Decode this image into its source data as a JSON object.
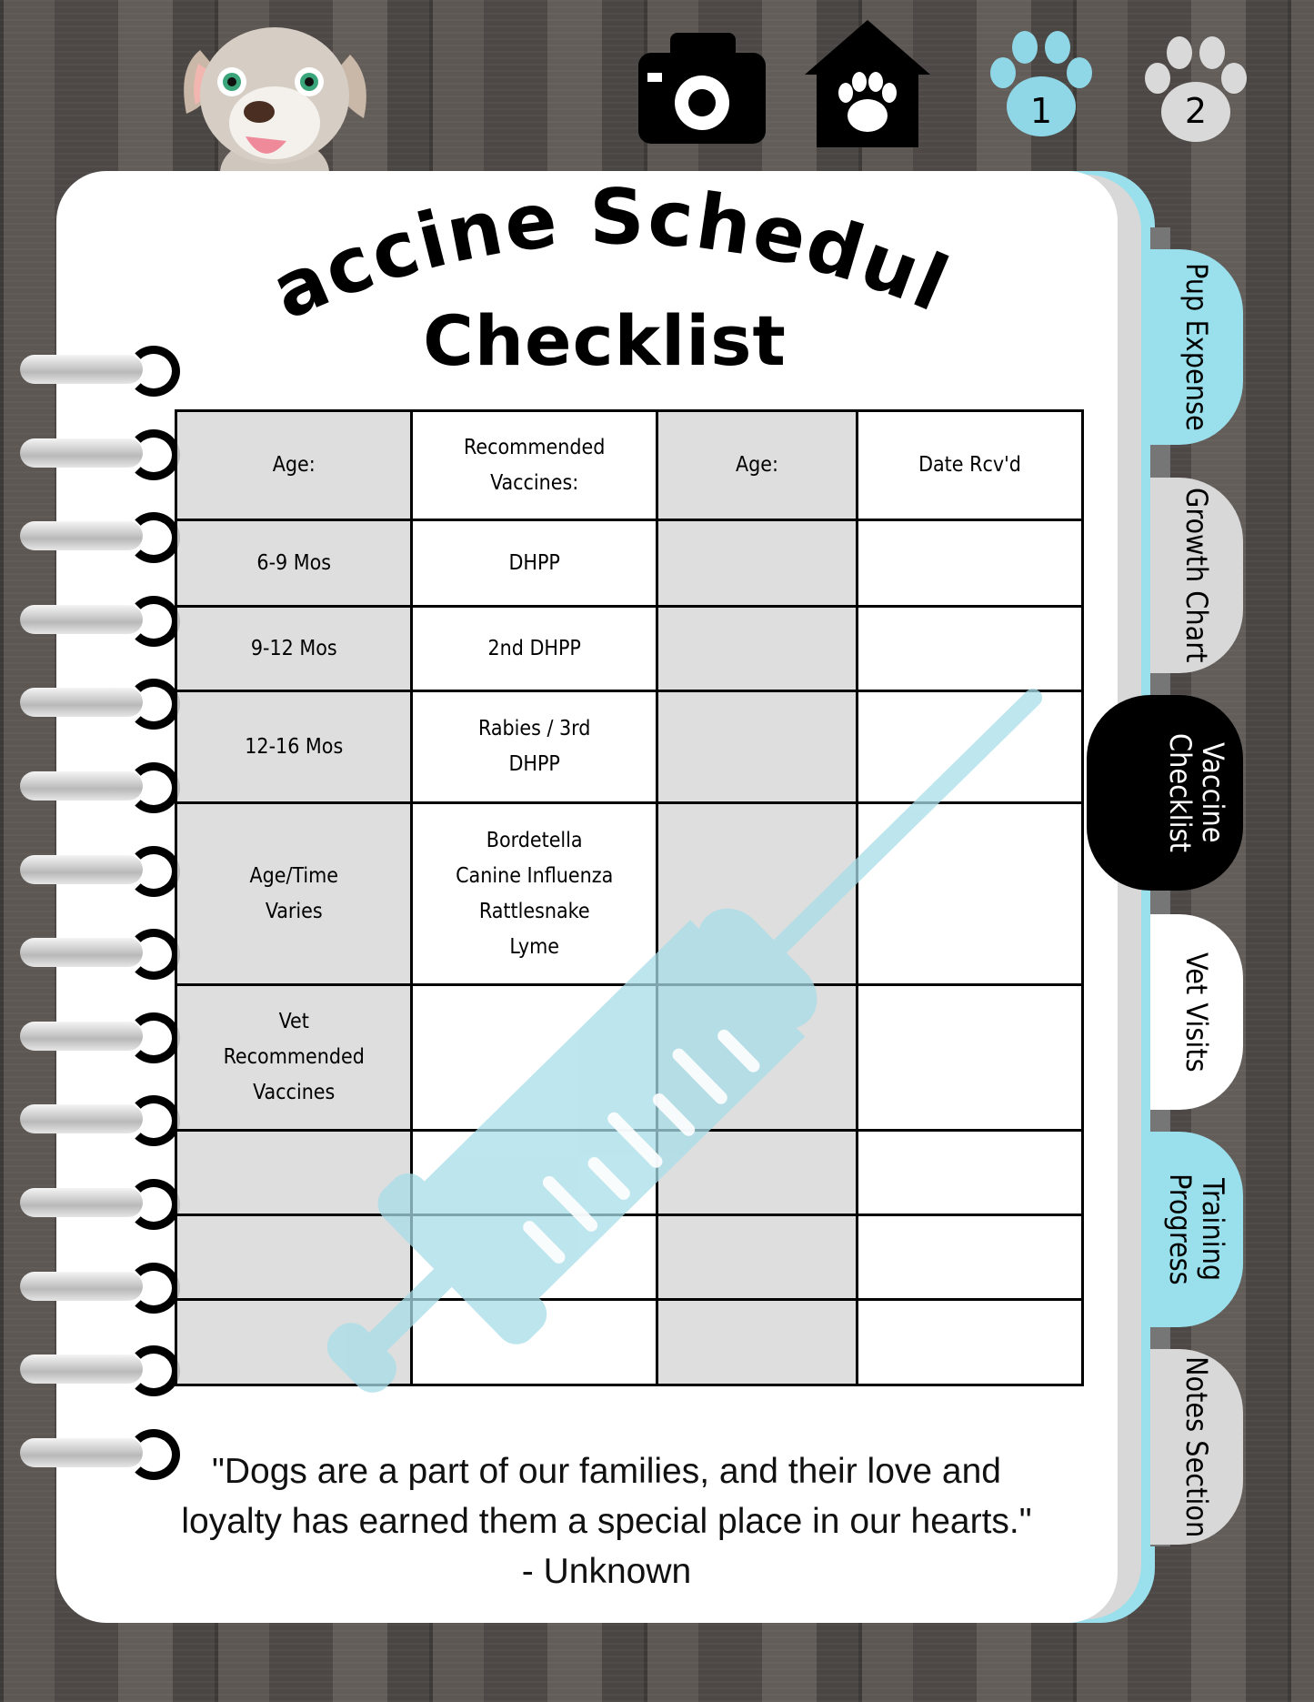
{
  "header": {
    "title_line1": "Vaccine Schedule",
    "title_line2": "Checklist"
  },
  "top_icons": [
    {
      "name": "camera-icon"
    },
    {
      "name": "pet-house-icon"
    },
    {
      "name": "paw-icon",
      "label": "1",
      "color": "#8fd6e6"
    },
    {
      "name": "paw-icon",
      "label": "2",
      "color": "#d9d9d9"
    }
  ],
  "tabs": [
    {
      "label": "Pup Expense",
      "color": "#9adfec"
    },
    {
      "label": "Growth Chart",
      "color": "#d8d8d8"
    },
    {
      "label": "Vaccine Checklist",
      "color": "#000000",
      "active": true
    },
    {
      "label": "Vet Visits",
      "color": "#ffffff"
    },
    {
      "label": "Training Progress",
      "color": "#9adfec"
    },
    {
      "label": "Notes Section",
      "color": "#d8d8d8"
    }
  ],
  "table": {
    "headers": [
      "Age:",
      "Recommended\nVaccines:",
      "Age:",
      "Date Rcv'd"
    ],
    "rows": [
      [
        "6-9 Mos",
        "DHPP",
        "",
        ""
      ],
      [
        "9-12 Mos",
        "2nd DHPP",
        "",
        ""
      ],
      [
        "12-16 Mos",
        "Rabies / 3rd\nDHPP",
        "",
        ""
      ],
      [
        "Age/Time\nVaries",
        "Bordetella\nCanine Influenza\nRattlesnake\nLyme",
        "",
        ""
      ],
      [
        "Vet\nRecommended\nVaccines",
        "",
        "",
        ""
      ],
      [
        "",
        "",
        "",
        ""
      ],
      [
        "",
        "",
        "",
        ""
      ],
      [
        "",
        "",
        "",
        ""
      ]
    ]
  },
  "quote": {
    "line1": "\"Dogs are a part of our families, and their love and",
    "line2": "loyalty has earned them a special place in our hearts.\"",
    "author": "- Unknown"
  },
  "colors": {
    "accent": "#9adfec",
    "watermark": "#a8dde8"
  }
}
